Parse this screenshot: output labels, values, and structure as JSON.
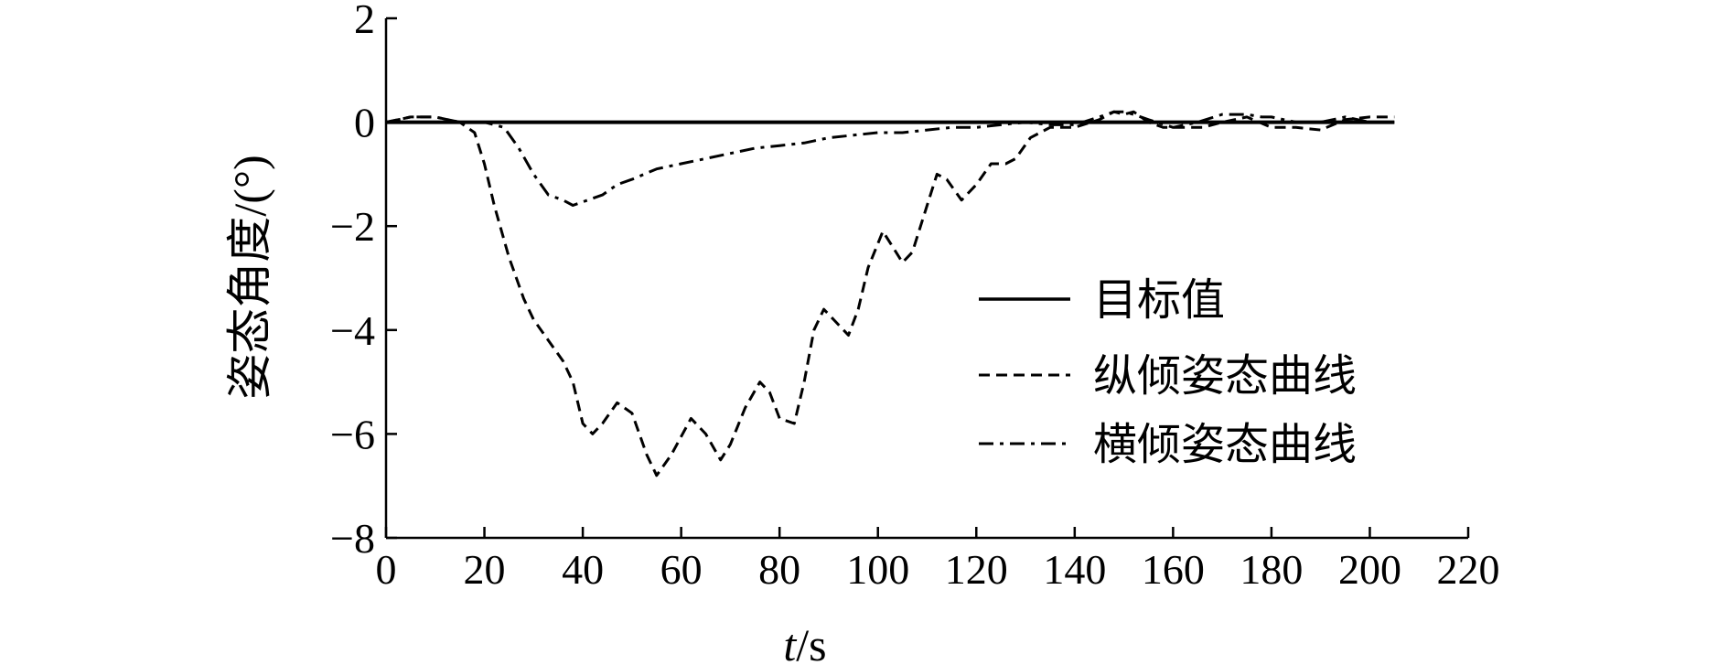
{
  "chart_data": {
    "type": "line",
    "title": "",
    "xlabel_italic": "t",
    "xlabel_unit": "/s",
    "ylabel": "姿态角度/(°)",
    "xlim": [
      0,
      220
    ],
    "ylim": [
      -8,
      2
    ],
    "x_ticks": [
      "0",
      "20",
      "40",
      "60",
      "80",
      "100",
      "120",
      "140",
      "160",
      "180",
      "200",
      "220"
    ],
    "y_ticks": [
      "2",
      "0",
      "−2",
      "−4",
      "−6",
      "−8"
    ],
    "x_tick_values": [
      0,
      20,
      40,
      60,
      80,
      100,
      120,
      140,
      160,
      180,
      200,
      220
    ],
    "y_tick_values": [
      2,
      0,
      -2,
      -4,
      -6,
      -8
    ],
    "grid": false,
    "legend_position": "right",
    "series": [
      {
        "name": "目标值",
        "style": "solid",
        "color": "#000000",
        "x": [
          0,
          205
        ],
        "y": [
          0,
          0
        ]
      },
      {
        "name": "纵倾姿态曲线",
        "style": "dashed",
        "color": "#000000",
        "x": [
          0,
          5,
          10,
          15,
          18,
          20,
          22,
          25,
          28,
          30,
          33,
          36,
          38,
          40,
          42,
          44,
          47,
          50,
          53,
          55,
          58,
          62,
          65,
          68,
          70,
          73,
          76,
          78,
          80,
          83,
          85,
          87,
          89,
          91,
          94,
          96,
          98,
          101,
          103,
          105,
          107,
          110,
          112,
          114,
          117,
          120,
          123,
          126,
          128,
          131,
          135,
          140,
          145,
          148,
          150,
          152,
          155,
          158,
          162,
          166,
          170,
          175,
          180,
          185,
          190,
          195,
          200,
          205
        ],
        "y": [
          0,
          0.1,
          0.1,
          0,
          -0.2,
          -0.8,
          -1.6,
          -2.6,
          -3.4,
          -3.8,
          -4.2,
          -4.6,
          -5.0,
          -5.8,
          -6.0,
          -5.8,
          -5.4,
          -5.6,
          -6.4,
          -6.8,
          -6.4,
          -5.7,
          -6.0,
          -6.5,
          -6.2,
          -5.5,
          -5.0,
          -5.2,
          -5.7,
          -5.8,
          -5.0,
          -4.0,
          -3.6,
          -3.8,
          -4.1,
          -3.6,
          -2.8,
          -2.1,
          -2.4,
          -2.7,
          -2.5,
          -1.6,
          -1.0,
          -1.1,
          -1.5,
          -1.2,
          -0.8,
          -0.8,
          -0.7,
          -0.3,
          -0.1,
          -0.1,
          0.05,
          0.2,
          0.15,
          0.2,
          0.0,
          -0.1,
          -0.1,
          -0.1,
          0.0,
          0.1,
          -0.1,
          -0.1,
          -0.15,
          0.05,
          0.1,
          0.1
        ]
      },
      {
        "name": "横倾姿态曲线",
        "style": "dashdot",
        "color": "#000000",
        "x": [
          0,
          5,
          10,
          15,
          20,
          24,
          27,
          30,
          33,
          36,
          38,
          41,
          44,
          47,
          50,
          55,
          60,
          65,
          70,
          75,
          80,
          85,
          90,
          95,
          100,
          105,
          110,
          115,
          120,
          125,
          130,
          135,
          140,
          145,
          148,
          150,
          152,
          155,
          160,
          165,
          170,
          175,
          178,
          180,
          185,
          190,
          195,
          200,
          205
        ],
        "y": [
          0,
          0.1,
          0.1,
          0,
          0,
          -0.1,
          -0.5,
          -1.0,
          -1.4,
          -1.5,
          -1.6,
          -1.5,
          -1.4,
          -1.2,
          -1.1,
          -0.9,
          -0.8,
          -0.7,
          -0.6,
          -0.5,
          -0.45,
          -0.4,
          -0.3,
          -0.25,
          -0.2,
          -0.2,
          -0.15,
          -0.1,
          -0.1,
          -0.05,
          0,
          -0.05,
          -0.05,
          0.1,
          0.2,
          0.2,
          0.15,
          0.05,
          -0.1,
          0.0,
          0.15,
          0.15,
          0.1,
          0.1,
          0.0,
          0.0,
          0.1,
          0.0,
          0.0
        ]
      }
    ]
  }
}
